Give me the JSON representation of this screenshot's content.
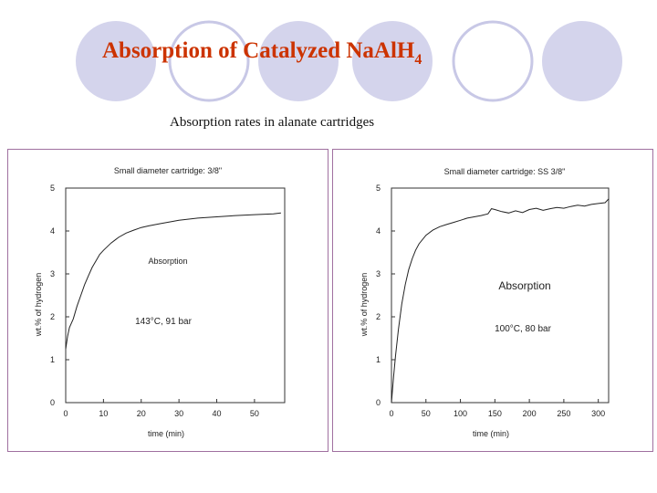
{
  "slide": {
    "title_main": "Absorption of Catalyzed NaAlH",
    "title_sub": "4",
    "subtitle": "Absorption rates in alanate cartridges"
  },
  "colors": {
    "title": "#cc3300",
    "circle_fill": "#d4d4ec",
    "circle_stroke": "#c8c8e6",
    "panel_border": "#a070a0",
    "curve": "#222222"
  },
  "chart_data": [
    {
      "type": "line",
      "title": "Small diameter cartridge: 3/8\"",
      "xlabel": "time (min)",
      "ylabel": "wt.% of hydrogen",
      "xlim": [
        0,
        58
      ],
      "ylim": [
        0,
        5
      ],
      "xticks": [
        0,
        10,
        20,
        30,
        40,
        50
      ],
      "yticks": [
        0,
        1,
        2,
        3,
        4,
        5
      ],
      "grid": false,
      "annotations": [
        "Absorption",
        "143°C, 91 bar"
      ],
      "series": [
        {
          "x": [
            0,
            0.5,
            1,
            2,
            3,
            4,
            5,
            6,
            7,
            8,
            9,
            10,
            12,
            14,
            16,
            18,
            20,
            22,
            25,
            28,
            30,
            35,
            40,
            45,
            50,
            55,
            57
          ],
          "y": [
            1.25,
            1.55,
            1.75,
            1.95,
            2.25,
            2.5,
            2.75,
            2.95,
            3.15,
            3.3,
            3.45,
            3.55,
            3.72,
            3.85,
            3.95,
            4.02,
            4.08,
            4.12,
            4.17,
            4.22,
            4.25,
            4.3,
            4.33,
            4.36,
            4.38,
            4.4,
            4.42
          ]
        }
      ]
    },
    {
      "type": "line",
      "title": "Small diameter cartridge: SS 3/8\"",
      "xlabel": "time (min)",
      "ylabel": "wt.% of hydrogen",
      "xlim": [
        0,
        315
      ],
      "ylim": [
        0,
        5
      ],
      "xticks": [
        0,
        50,
        100,
        150,
        200,
        250,
        300
      ],
      "yticks": [
        0,
        1,
        2,
        3,
        4,
        5
      ],
      "grid": false,
      "annotations": [
        "Absorption",
        "100°C, 80 bar"
      ],
      "series": [
        {
          "x": [
            0,
            3,
            6,
            10,
            15,
            20,
            25,
            30,
            35,
            40,
            50,
            60,
            70,
            80,
            90,
            100,
            110,
            120,
            130,
            140,
            145,
            150,
            160,
            170,
            180,
            190,
            200,
            210,
            220,
            230,
            240,
            250,
            260,
            270,
            280,
            290,
            300,
            310,
            315
          ],
          "y": [
            0,
            0.6,
            1.1,
            1.7,
            2.3,
            2.75,
            3.1,
            3.35,
            3.55,
            3.7,
            3.9,
            4.02,
            4.1,
            4.15,
            4.2,
            4.25,
            4.3,
            4.33,
            4.36,
            4.4,
            4.52,
            4.5,
            4.45,
            4.42,
            4.47,
            4.43,
            4.5,
            4.53,
            4.48,
            4.52,
            4.55,
            4.53,
            4.57,
            4.6,
            4.58,
            4.62,
            4.64,
            4.66,
            4.75
          ]
        }
      ]
    }
  ]
}
